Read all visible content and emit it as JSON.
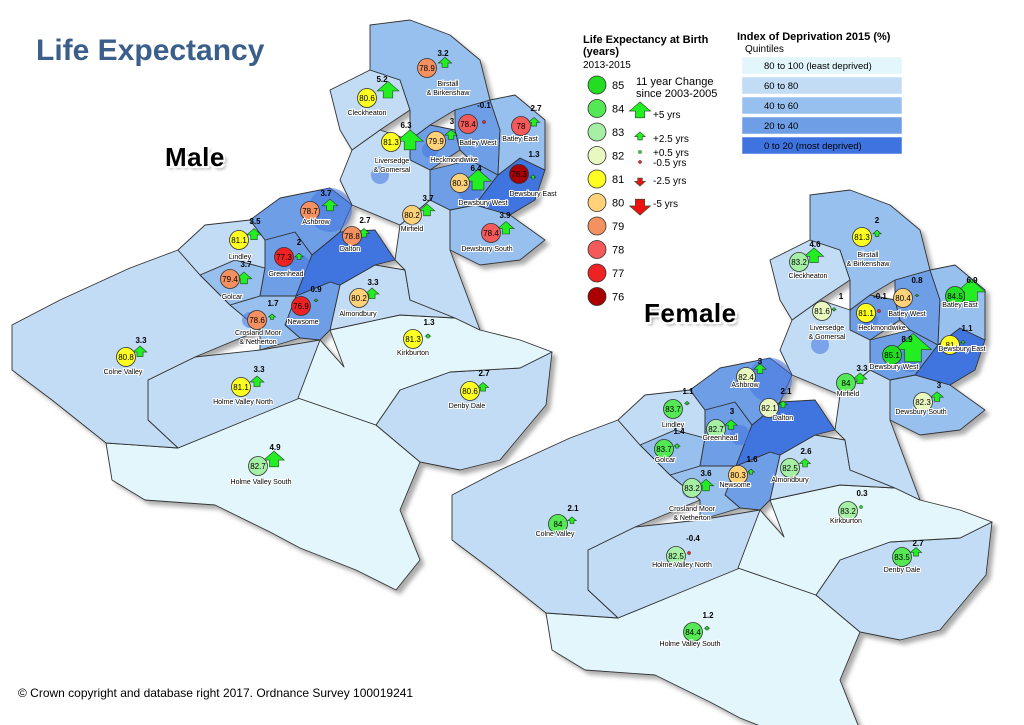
{
  "title": "Life Expectancy",
  "panels": {
    "male_label": "Male",
    "female_label": "Female"
  },
  "copyright": "© Crown copyright and database right 2017. Ordnance Survey 100019241",
  "legend_life": {
    "title_line1": "Life Expectancy at Birth",
    "title_line2": "(years)",
    "period": "2013-2015",
    "items": [
      {
        "value": "85",
        "color": "#22dd22"
      },
      {
        "value": "84",
        "color": "#55e855"
      },
      {
        "value": "83",
        "color": "#a5f0a5"
      },
      {
        "value": "82",
        "color": "#e8f8c0"
      },
      {
        "value": "81",
        "color": "#ffff22"
      },
      {
        "value": "80",
        "color": "#ffd27a"
      },
      {
        "value": "79",
        "color": "#f59060"
      },
      {
        "value": "78",
        "color": "#f55a5a"
      },
      {
        "value": "77",
        "color": "#ee2222"
      },
      {
        "value": "76",
        "color": "#aa0000"
      }
    ]
  },
  "legend_change": {
    "title_line1": "11 year Change",
    "title_line2": "since 2003-2005",
    "items": [
      {
        "label": "+5 yrs",
        "dir": "up",
        "size": 5
      },
      {
        "label": "+2.5 yrs",
        "dir": "up",
        "size": 2.5
      },
      {
        "label": "+0.5 yrs",
        "dir": "up",
        "size": 0.5
      },
      {
        "label": "-0.5 yrs",
        "dir": "down",
        "size": 0.5
      },
      {
        "label": "-2.5 yrs",
        "dir": "down",
        "size": 2.5
      },
      {
        "label": "-5 yrs",
        "dir": "down",
        "size": 5
      }
    ]
  },
  "legend_deprivation": {
    "title": "Index of Deprivation 2015 (%)",
    "subtitle": "Quintiles",
    "items": [
      {
        "label": "80 to 100 (least deprived)",
        "color": "#e2f6fb"
      },
      {
        "label": "60  to  80",
        "color": "#c2dcf5"
      },
      {
        "label": "40  to  60",
        "color": "#98c0ee"
      },
      {
        "label": "20  to  40",
        "color": "#6e9ee6"
      },
      {
        "label": "0 to 20 (most deprived)",
        "color": "#3f74e0"
      }
    ]
  },
  "male_areas": [
    {
      "name": "Birstall & Birkenshaw",
      "le": 78.9,
      "change": 3.2
    },
    {
      "name": "Cleckheaton",
      "le": 80.6,
      "change": 5.2
    },
    {
      "name": "Batley West",
      "le": 78.4,
      "change": -0.1
    },
    {
      "name": "Batley East",
      "le": 78,
      "change": 2.7
    },
    {
      "name": "Liversedge & Gomersal",
      "le": 81.3,
      "change": 6.3
    },
    {
      "name": "Heckmondwike",
      "le": 79.9,
      "change": 3
    },
    {
      "name": "Dewsbury East",
      "le": 76.3,
      "change": 1.3
    },
    {
      "name": "Dewsbury West",
      "le": 80.3,
      "change": 6.4
    },
    {
      "name": "Ashbrow",
      "le": 78.7,
      "change": 3.7
    },
    {
      "name": "Mirfield",
      "le": 80.2,
      "change": 3.7
    },
    {
      "name": "Dalton",
      "le": 78.8,
      "change": 2.7
    },
    {
      "name": "Dewsbury South",
      "le": 78.4,
      "change": 3.9
    },
    {
      "name": "Lindley",
      "le": 81.1,
      "change": 3.5
    },
    {
      "name": "Greenhead",
      "le": 77.3,
      "change": 2
    },
    {
      "name": "Golcar",
      "le": 79.4,
      "change": 3.7
    },
    {
      "name": "Almondbury",
      "le": 80.2,
      "change": 3.3
    },
    {
      "name": "Crosland Moor & Netherton",
      "le": 78.6,
      "change": 1.7
    },
    {
      "name": "Newsome",
      "le": 76.9,
      "change": 0.9
    },
    {
      "name": "Kirkburton",
      "le": 81.3,
      "change": 1.3
    },
    {
      "name": "Colne Valley",
      "le": 80.8,
      "change": 3.3
    },
    {
      "name": "Holme Valley North",
      "le": 81.1,
      "change": 3.3
    },
    {
      "name": "Denby Dale",
      "le": 80.6,
      "change": 2.7
    },
    {
      "name": "Holme Valley South",
      "le": 82.7,
      "change": 4.9
    }
  ],
  "female_areas": [
    {
      "name": "Cleckheaton",
      "le": 83.2,
      "change": 4.6
    },
    {
      "name": "Birstall & Birkenshaw",
      "le": 81.3,
      "change": 2
    },
    {
      "name": "Liversedge & Gomersal",
      "le": 81.6,
      "change": 1
    },
    {
      "name": "Heckmondwike",
      "le": 81.1,
      "change": -0.1
    },
    {
      "name": "Batley West",
      "le": 80.4,
      "change": 0.8
    },
    {
      "name": "Batley East",
      "le": 84.5,
      "change": 6.9
    },
    {
      "name": "Dewsbury East",
      "le": 81,
      "change": 1.1
    },
    {
      "name": "Dewsbury West",
      "le": 85.1,
      "change": 8.9
    },
    {
      "name": "Ashbrow",
      "le": 82.4,
      "change": 3
    },
    {
      "name": "Mirfield",
      "le": 84,
      "change": 3.3
    },
    {
      "name": "Dewsbury South",
      "le": 82.3,
      "change": 3
    },
    {
      "name": "Lindley",
      "le": 83.7,
      "change": 1.1
    },
    {
      "name": "Greenhead",
      "le": 82.7,
      "change": 3
    },
    {
      "name": "Dalton",
      "le": 82.1,
      "change": 2.1
    },
    {
      "name": "Golcar",
      "le": 83.7,
      "change": 1.4
    },
    {
      "name": "Crosland Moor & Netherton",
      "le": 83.2,
      "change": 3.6
    },
    {
      "name": "Newsome",
      "le": 80.3,
      "change": 1.6
    },
    {
      "name": "Almondbury",
      "le": 82.5,
      "change": 2.6
    },
    {
      "name": "Kirkburton",
      "le": 83.2,
      "change": 0.3
    },
    {
      "name": "Colne Valley",
      "le": 84,
      "change": 2.1
    },
    {
      "name": "Holme Valley North",
      "le": 82.5,
      "change": -0.4
    },
    {
      "name": "Denby Dale",
      "le": 83.5,
      "change": 2.7
    },
    {
      "name": "Holme Valley South",
      "le": 84.4,
      "change": 1.2
    }
  ]
}
